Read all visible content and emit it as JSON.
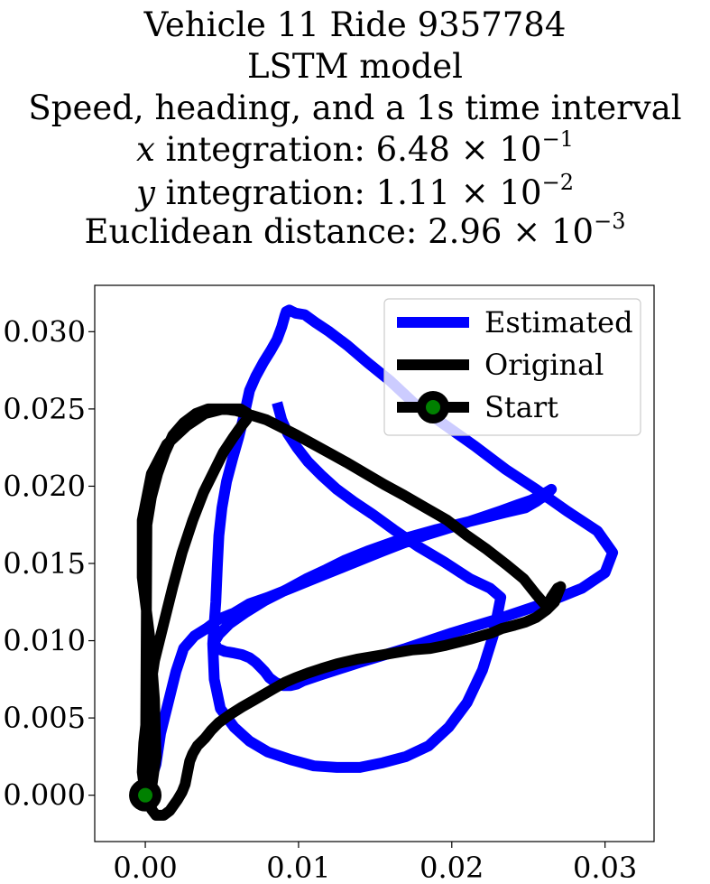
{
  "chart_data": {
    "type": "line",
    "title_lines": [
      "Vehicle 11 Ride 9357784",
      "LSTM model",
      "Speed, heading, and a 1s time interval"
    ],
    "metrics": [
      {
        "var": "x",
        "label": " integration: ",
        "mantissa": "6.48",
        "times": " × 10",
        "exponent": "−1"
      },
      {
        "var": "y",
        "label": " integration: ",
        "mantissa": "1.11",
        "times": " × 10",
        "exponent": "−2"
      },
      {
        "var": "",
        "label": "Euclidean distance: ",
        "mantissa": "2.96",
        "times": " × 10",
        "exponent": "−3"
      }
    ],
    "xlim": [
      -0.0033,
      0.0332
    ],
    "ylim": [
      -0.003,
      0.033
    ],
    "x_ticks": [
      0.0,
      0.01,
      0.02,
      0.03
    ],
    "x_tick_labels": [
      "0.00",
      "0.01",
      "0.02",
      "0.03"
    ],
    "y_ticks": [
      0.0,
      0.005,
      0.01,
      0.015,
      0.02,
      0.025,
      0.03
    ],
    "y_tick_labels": [
      "0.000",
      "0.005",
      "0.010",
      "0.015",
      "0.020",
      "0.025",
      "0.030"
    ],
    "grid": false,
    "legend_position": "top-right",
    "series": [
      {
        "name": "Estimated",
        "color": "#0000ff",
        "x": [
          0.0,
          0.0003,
          0.0007,
          0.001,
          0.0015,
          0.002,
          0.0025,
          0.0032,
          0.004,
          0.0048,
          0.0058,
          0.0068,
          0.008,
          0.0095,
          0.011,
          0.0125,
          0.014,
          0.0155,
          0.0168,
          0.0182,
          0.0195,
          0.0208,
          0.022,
          0.0232,
          0.0243,
          0.0252,
          0.026,
          0.0265,
          0.0262,
          0.0255,
          0.0248,
          0.0235,
          0.0215,
          0.019,
          0.0165,
          0.0145,
          0.013,
          0.0118,
          0.0105,
          0.0092,
          0.0078,
          0.0065,
          0.0055,
          0.0048,
          0.0045,
          0.0047,
          0.0052,
          0.0058,
          0.0063,
          0.0068,
          0.0072,
          0.0075,
          0.0078,
          0.0081,
          0.0085,
          0.009,
          0.0095,
          0.0099,
          0.0103,
          0.0115,
          0.014,
          0.017,
          0.02,
          0.023,
          0.026,
          0.0285,
          0.03,
          0.0305,
          0.0295,
          0.0275,
          0.0255,
          0.0235,
          0.0215,
          0.0195,
          0.0175,
          0.016,
          0.0145,
          0.0132,
          0.012,
          0.0111,
          0.0104,
          0.0098,
          0.0096,
          0.0094,
          0.0092,
          0.0091,
          0.0089,
          0.0086,
          0.0082,
          0.0077,
          0.0072,
          0.0068,
          0.0066,
          0.0064,
          0.0061,
          0.0057,
          0.0053,
          0.005,
          0.0048,
          0.0047,
          0.0046,
          0.0044,
          0.0045,
          0.0049,
          0.0058,
          0.0068,
          0.008,
          0.0095,
          0.011,
          0.0125,
          0.014,
          0.0155,
          0.017,
          0.0185,
          0.0198,
          0.021,
          0.022,
          0.0227,
          0.0232,
          0.0225,
          0.0212,
          0.0195,
          0.0178,
          0.0162,
          0.0148,
          0.0136,
          0.0125,
          0.0115,
          0.0106,
          0.0099,
          0.0093,
          0.0089,
          0.0086
        ],
        "y": [
          0.0,
          0.0008,
          0.002,
          0.004,
          0.006,
          0.008,
          0.0095,
          0.0103,
          0.0108,
          0.0114,
          0.0118,
          0.0124,
          0.0128,
          0.0134,
          0.014,
          0.0146,
          0.0152,
          0.0158,
          0.0163,
          0.0168,
          0.0172,
          0.0176,
          0.018,
          0.0184,
          0.0188,
          0.0191,
          0.0195,
          0.0198,
          0.0195,
          0.019,
          0.0186,
          0.0183,
          0.0178,
          0.0172,
          0.0165,
          0.0158,
          0.0152,
          0.0146,
          0.014,
          0.0133,
          0.0126,
          0.0118,
          0.0111,
          0.0104,
          0.0099,
          0.0095,
          0.0093,
          0.0092,
          0.0091,
          0.0089,
          0.0086,
          0.0083,
          0.008,
          0.0076,
          0.0073,
          0.0071,
          0.0071,
          0.0072,
          0.0074,
          0.0078,
          0.0086,
          0.0095,
          0.0105,
          0.0114,
          0.0124,
          0.0134,
          0.0144,
          0.0157,
          0.0171,
          0.0184,
          0.0198,
          0.0211,
          0.0226,
          0.024,
          0.0254,
          0.0268,
          0.028,
          0.0291,
          0.03,
          0.0306,
          0.0311,
          0.0312,
          0.0313,
          0.0314,
          0.0313,
          0.031,
          0.0303,
          0.0295,
          0.0288,
          0.028,
          0.0271,
          0.0262,
          0.0253,
          0.0244,
          0.0232,
          0.0218,
          0.0203,
          0.0186,
          0.0168,
          0.0148,
          0.0125,
          0.0098,
          0.0075,
          0.0056,
          0.0044,
          0.0035,
          0.0028,
          0.0023,
          0.0019,
          0.0018,
          0.0018,
          0.0021,
          0.0025,
          0.0032,
          0.0044,
          0.006,
          0.0081,
          0.0103,
          0.0128,
          0.0134,
          0.014,
          0.0151,
          0.0161,
          0.0172,
          0.0182,
          0.019,
          0.0198,
          0.0207,
          0.0216,
          0.0225,
          0.0234,
          0.0243,
          0.0254
        ]
      },
      {
        "name": "Original",
        "color": "#000000",
        "x": [
          0.0,
          -0.0002,
          -0.0001,
          0.0002,
          0.0006,
          0.0012,
          0.0018,
          0.0024,
          0.0031,
          0.0038,
          0.0045,
          0.0051,
          0.0057,
          0.0062,
          0.0066,
          0.0067,
          0.0062,
          0.0051,
          0.0039,
          0.0027,
          0.0014,
          0.0004,
          -0.0002,
          -0.0002,
          0.0003,
          0.0006,
          0.0007,
          0.0004,
          0.0004,
          0.0007,
          0.0012,
          0.0016,
          0.0021,
          0.0024,
          0.0026,
          0.0027,
          0.0028,
          0.0029,
          0.0031,
          0.0034,
          0.0039,
          0.0043,
          0.0048,
          0.0055,
          0.0063,
          0.007,
          0.0077,
          0.0084,
          0.0091,
          0.0098,
          0.0106,
          0.0115,
          0.0125,
          0.0138,
          0.015,
          0.0162,
          0.0174,
          0.0186,
          0.0196,
          0.0204,
          0.0212,
          0.0219,
          0.0226,
          0.0233,
          0.0241,
          0.0248,
          0.0255,
          0.0262,
          0.0267,
          0.0271,
          0.0269,
          0.0265,
          0.0262,
          0.0255,
          0.0247,
          0.0236,
          0.0223,
          0.021,
          0.0197,
          0.0183,
          0.0169,
          0.0156,
          0.0144,
          0.0132,
          0.0121,
          0.011,
          0.0099,
          0.0089,
          0.0079,
          0.0069,
          0.0059,
          0.005,
          0.0041,
          0.0033,
          0.0025,
          0.0018,
          0.0013,
          0.0008,
          0.0004,
          0.0001,
          0.0
        ],
        "y": [
          0.0,
          0.0015,
          0.0034,
          0.0061,
          0.0087,
          0.0111,
          0.0135,
          0.0157,
          0.0178,
          0.0196,
          0.021,
          0.0222,
          0.0231,
          0.0238,
          0.0243,
          0.0247,
          0.025,
          0.025,
          0.0247,
          0.0239,
          0.0227,
          0.0208,
          0.0178,
          0.0141,
          0.0101,
          0.0062,
          0.0025,
          0.0004,
          -0.0009,
          -0.0013,
          -0.0013,
          -0.001,
          -0.0003,
          0.0002,
          0.0007,
          0.0012,
          0.0017,
          0.0022,
          0.0027,
          0.0032,
          0.0037,
          0.0042,
          0.0047,
          0.0052,
          0.0057,
          0.0061,
          0.0065,
          0.0069,
          0.0073,
          0.0076,
          0.0079,
          0.0082,
          0.0085,
          0.0088,
          0.009,
          0.0092,
          0.0094,
          0.0095,
          0.0097,
          0.0099,
          0.0101,
          0.0103,
          0.0105,
          0.0108,
          0.011,
          0.0112,
          0.0115,
          0.012,
          0.0125,
          0.0135,
          0.0134,
          0.0128,
          0.0122,
          0.013,
          0.014,
          0.0149,
          0.0159,
          0.0168,
          0.0178,
          0.0186,
          0.0194,
          0.0201,
          0.0208,
          0.0215,
          0.0221,
          0.0227,
          0.0233,
          0.0238,
          0.0243,
          0.0246,
          0.0249,
          0.025,
          0.025,
          0.0247,
          0.0241,
          0.0233,
          0.0222,
          0.0208,
          0.0193,
          0.0175,
          0.0
        ]
      }
    ],
    "start_point": {
      "name": "Start",
      "x": 0.0,
      "y": 0.0,
      "edge_color": "#000000",
      "face_color": "#008000"
    }
  }
}
